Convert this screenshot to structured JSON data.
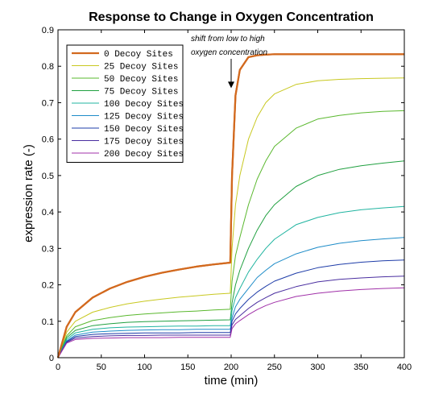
{
  "chart_data": {
    "type": "line",
    "title": "Response to Change in Oxygen Concentration",
    "xlabel": "time (min)",
    "ylabel": "expression rate (-)",
    "xlim": [
      0,
      400
    ],
    "ylim": [
      0,
      0.9
    ],
    "xticks": [
      0,
      50,
      100,
      150,
      200,
      250,
      300,
      350,
      400
    ],
    "yticks": [
      0,
      0.1,
      0.2,
      0.3,
      0.4,
      0.5,
      0.6,
      0.7,
      0.8,
      0.9
    ],
    "grid": false,
    "legend_position": "top-left",
    "annotation": {
      "lines": [
        "shift from low to high",
        "oxygen concentration"
      ],
      "arrow_to": [
        200,
        0.74
      ]
    },
    "x": [
      0,
      10,
      20,
      40,
      60,
      80,
      100,
      120,
      140,
      160,
      180,
      199,
      201,
      205,
      210,
      220,
      230,
      240,
      250,
      275,
      300,
      325,
      350,
      375,
      400
    ],
    "series": [
      {
        "name": "0 Decoy Sites",
        "color": "#d2691e",
        "width": 2.2,
        "values": [
          0,
          0.085,
          0.125,
          0.165,
          0.19,
          0.208,
          0.222,
          0.233,
          0.242,
          0.25,
          0.256,
          0.261,
          0.5,
          0.72,
          0.79,
          0.825,
          0.83,
          0.832,
          0.833,
          0.833,
          0.833,
          0.833,
          0.833,
          0.833,
          0.833
        ]
      },
      {
        "name": "25 Decoy Sites",
        "color": "#c8c820",
        "width": 1,
        "values": [
          0,
          0.07,
          0.1,
          0.125,
          0.138,
          0.148,
          0.155,
          0.161,
          0.166,
          0.17,
          0.174,
          0.177,
          0.3,
          0.42,
          0.5,
          0.6,
          0.66,
          0.7,
          0.724,
          0.75,
          0.76,
          0.764,
          0.766,
          0.767,
          0.768
        ]
      },
      {
        "name": "50 Decoy Sites",
        "color": "#5ab82e",
        "width": 1,
        "values": [
          0,
          0.06,
          0.085,
          0.102,
          0.11,
          0.116,
          0.12,
          0.123,
          0.126,
          0.128,
          0.131,
          0.133,
          0.21,
          0.28,
          0.33,
          0.42,
          0.49,
          0.54,
          0.58,
          0.63,
          0.655,
          0.665,
          0.672,
          0.676,
          0.678
        ]
      },
      {
        "name": "75 Decoy Sites",
        "color": "#20a040",
        "width": 1,
        "values": [
          0,
          0.055,
          0.075,
          0.088,
          0.093,
          0.097,
          0.099,
          0.1,
          0.101,
          0.102,
          0.103,
          0.104,
          0.15,
          0.2,
          0.24,
          0.3,
          0.35,
          0.39,
          0.42,
          0.47,
          0.5,
          0.517,
          0.527,
          0.534,
          0.54
        ]
      },
      {
        "name": "100 Decoy Sites",
        "color": "#20b4a0",
        "width": 1,
        "values": [
          0,
          0.05,
          0.068,
          0.078,
          0.082,
          0.084,
          0.085,
          0.086,
          0.087,
          0.087,
          0.088,
          0.088,
          0.13,
          0.165,
          0.19,
          0.235,
          0.27,
          0.3,
          0.325,
          0.365,
          0.385,
          0.398,
          0.406,
          0.411,
          0.415
        ]
      },
      {
        "name": "125 Decoy Sites",
        "color": "#1e8cc8",
        "width": 1,
        "values": [
          0,
          0.046,
          0.062,
          0.07,
          0.073,
          0.075,
          0.076,
          0.077,
          0.077,
          0.078,
          0.078,
          0.078,
          0.11,
          0.14,
          0.16,
          0.19,
          0.22,
          0.24,
          0.258,
          0.285,
          0.303,
          0.314,
          0.321,
          0.326,
          0.33
        ]
      },
      {
        "name": "150 Decoy Sites",
        "color": "#1e3ca8",
        "width": 1,
        "values": [
          0,
          0.044,
          0.058,
          0.064,
          0.066,
          0.067,
          0.068,
          0.068,
          0.068,
          0.069,
          0.069,
          0.069,
          0.1,
          0.12,
          0.135,
          0.16,
          0.18,
          0.196,
          0.21,
          0.232,
          0.247,
          0.256,
          0.262,
          0.266,
          0.268
        ]
      },
      {
        "name": "175 Decoy Sites",
        "color": "#4a2ea0",
        "width": 1,
        "values": [
          0,
          0.042,
          0.054,
          0.058,
          0.06,
          0.061,
          0.061,
          0.062,
          0.062,
          0.062,
          0.062,
          0.062,
          0.09,
          0.105,
          0.115,
          0.135,
          0.152,
          0.165,
          0.177,
          0.195,
          0.208,
          0.215,
          0.219,
          0.222,
          0.224
        ]
      },
      {
        "name": "200 Decoy Sites",
        "color": "#a030a8",
        "width": 1,
        "values": [
          0,
          0.04,
          0.05,
          0.053,
          0.054,
          0.055,
          0.055,
          0.055,
          0.056,
          0.056,
          0.056,
          0.056,
          0.08,
          0.093,
          0.102,
          0.118,
          0.132,
          0.143,
          0.152,
          0.168,
          0.177,
          0.183,
          0.187,
          0.19,
          0.192
        ]
      }
    ]
  }
}
